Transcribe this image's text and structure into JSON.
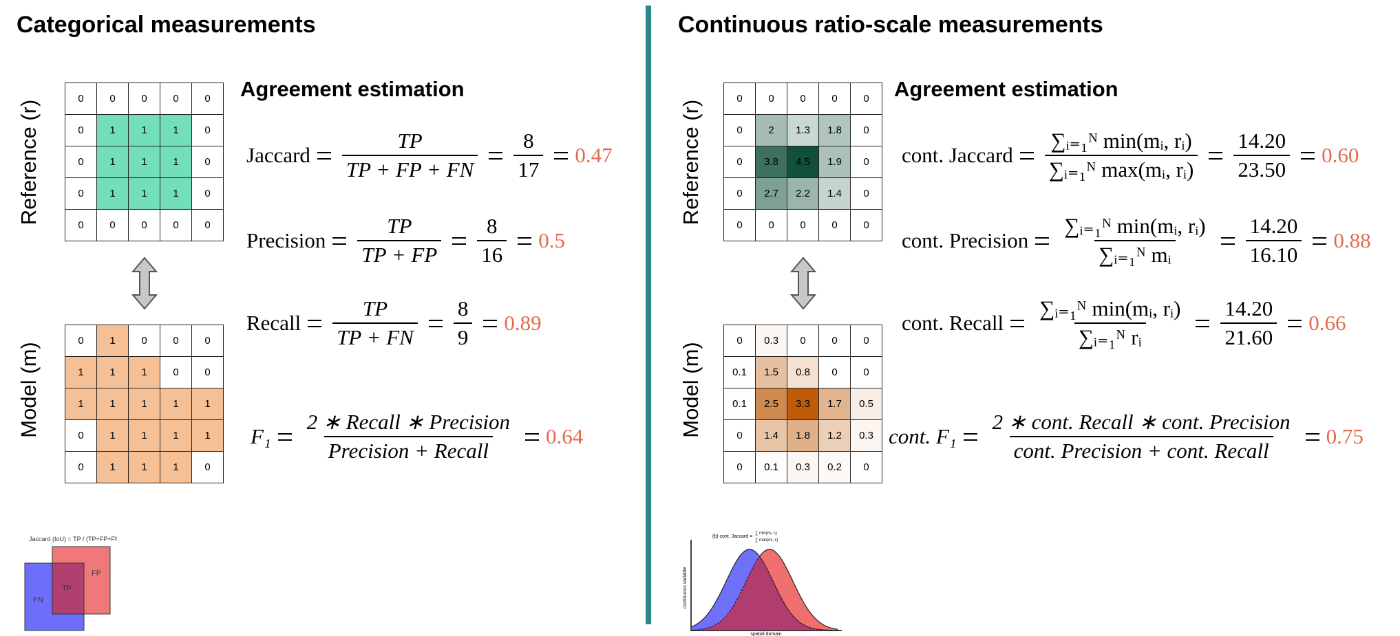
{
  "left": {
    "title": "Categorical measurements",
    "reference_label": "Reference (r)",
    "model_label": "Model (m)",
    "reference_grid": [
      [
        0,
        0,
        0,
        0,
        0
      ],
      [
        0,
        1,
        1,
        1,
        0
      ],
      [
        0,
        1,
        1,
        1,
        0
      ],
      [
        0,
        1,
        1,
        1,
        0
      ],
      [
        0,
        0,
        0,
        0,
        0
      ]
    ],
    "model_grid": [
      [
        0,
        1,
        0,
        0,
        0
      ],
      [
        1,
        1,
        1,
        0,
        0
      ],
      [
        1,
        1,
        1,
        1,
        1
      ],
      [
        0,
        1,
        1,
        1,
        1
      ],
      [
        0,
        1,
        1,
        1,
        0
      ]
    ],
    "heading": "Agreement estimation",
    "formulas": [
      {
        "name": "Jaccard",
        "numerator": "TP",
        "denominator": "TP + FP + FN",
        "value_numerator": "8",
        "value_denominator": "17",
        "result": "0.47"
      },
      {
        "name": "Precision",
        "numerator": "TP",
        "denominator": "TP + FP",
        "value_numerator": "8",
        "value_denominator": "16",
        "result": "0.5"
      },
      {
        "name": "Recall",
        "numerator": "TP",
        "denominator": "TP + FN",
        "value_numerator": "8",
        "value_denominator": "9",
        "result": "0.89"
      }
    ],
    "f1": {
      "name": "F₁",
      "numerator": "2 ∗ Recall ∗  Precision",
      "denominator": "Precision + Recall",
      "result": "0.64"
    },
    "inset": {
      "caption": "Jaccard (IoU) = TP / (TP+FP+FN)",
      "fn": "FN",
      "tp": "TP",
      "fp": "FP"
    }
  },
  "right": {
    "title": "Continuous ratio-scale measurements",
    "reference_label": "Reference (r)",
    "model_label": "Model (m)",
    "reference_grid": [
      [
        0,
        0,
        0,
        0,
        0
      ],
      [
        0,
        2,
        1.3,
        1.8,
        0
      ],
      [
        0,
        3.8,
        4.5,
        1.9,
        0
      ],
      [
        0,
        2.7,
        2.2,
        1.4,
        0
      ],
      [
        0,
        0,
        0,
        0,
        0
      ]
    ],
    "model_grid": [
      [
        0,
        0.3,
        0,
        0,
        0
      ],
      [
        0.1,
        1.5,
        0.8,
        0,
        0
      ],
      [
        0.1,
        2.5,
        3.3,
        1.7,
        0.5
      ],
      [
        0,
        1.4,
        1.8,
        1.2,
        0.3
      ],
      [
        0,
        0.1,
        0.3,
        0.2,
        0
      ]
    ],
    "heading": "Agreement estimation",
    "formulas": [
      {
        "name": "cont. Jaccard",
        "numerator": "∑ᵢ₌₁ᴺ min(mᵢ, rᵢ)",
        "denominator": "∑ᵢ₌₁ᴺ max(mᵢ, rᵢ)",
        "value_numerator": "14.20",
        "value_denominator": "23.50",
        "result": "0.60"
      },
      {
        "name": "cont. Precision",
        "numerator": "∑ᵢ₌₁ᴺ min(mᵢ, rᵢ)",
        "denominator": "∑ᵢ₌₁ᴺ mᵢ",
        "value_numerator": "14.20",
        "value_denominator": "16.10",
        "result": "0.88"
      },
      {
        "name": "cont. Recall",
        "numerator": "∑ᵢ₌₁ᴺ min(mᵢ, rᵢ)",
        "denominator": "∑ᵢ₌₁ᴺ rᵢ",
        "value_numerator": "14.20",
        "value_denominator": "21.60",
        "result": "0.66"
      }
    ],
    "f1": {
      "name": "cont. F₁",
      "numerator": "2 ∗ cont. Recall ∗ cont. Precision",
      "denominator": "cont. Precision + cont. Recall",
      "result": "0.75"
    },
    "inset": {
      "title": "(b) cont. Jaccard =",
      "numerator": "∑ min(mᵢ, rᵢ)",
      "denominator": "∑ max(mᵢ, rᵢ)",
      "y_label": "continuous variable",
      "x_label": "spatial domain"
    }
  }
}
